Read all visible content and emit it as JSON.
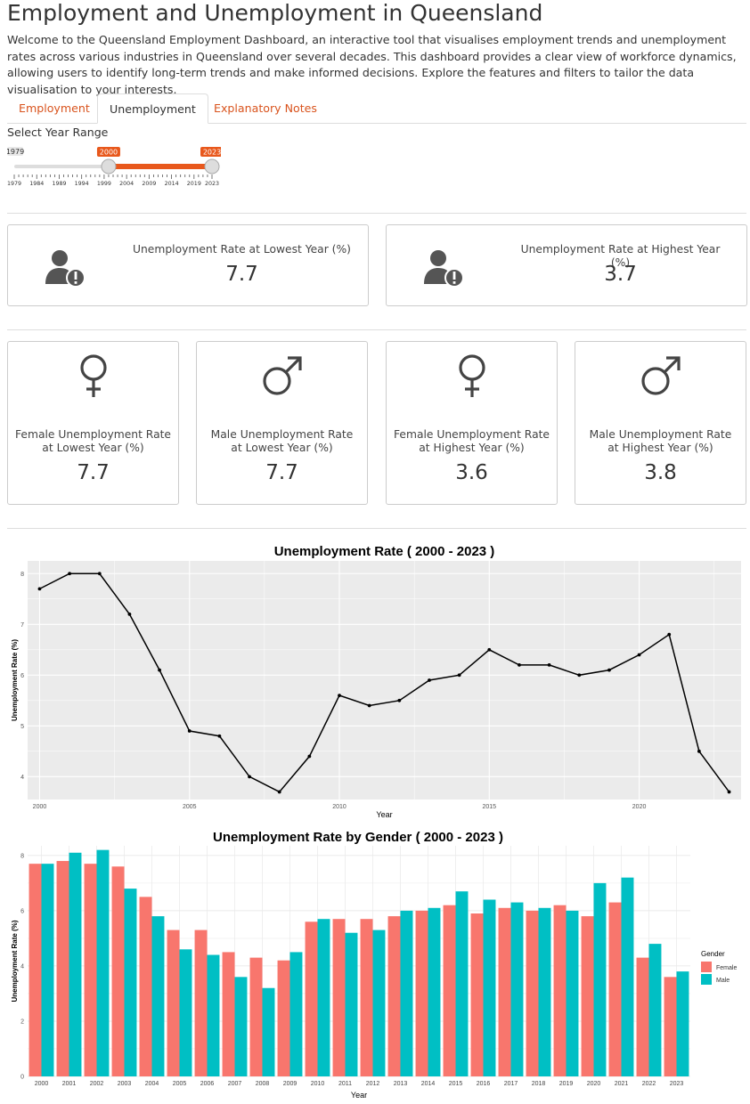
{
  "page": {
    "title": "Employment and Unemployment in Queensland",
    "intro": "Welcome to the Queensland Employment Dashboard, an interactive tool that visualises employment trends and unemployment rates across various industries in Queensland over several decades. This dashboard provides a clear view of workforce dynamics, allowing users to identify long-term trends and make informed decisions. Explore the features and filters to tailor the data visualisation to your interests."
  },
  "tabs": [
    {
      "label": "Employment",
      "active": false
    },
    {
      "label": "Unemployment",
      "active": true
    },
    {
      "label": "Explanatory Notes",
      "active": false
    }
  ],
  "year_slider": {
    "label": "Select Year Range",
    "min": 1979,
    "max": 2023,
    "from": 2000,
    "to": 2023,
    "min_label": "1979",
    "from_label": "2000",
    "to_label": "2023",
    "ticks": [
      "1979",
      "1984",
      "1989",
      "1994",
      "1999",
      "2004",
      "2009",
      "2014",
      "2019",
      "2023"
    ],
    "accent_color": "#e8581c"
  },
  "summary_boxes": [
    {
      "icon": "user-alert-icon",
      "label": "Unemployment Rate at Lowest Year (%)",
      "value": "7.7"
    },
    {
      "icon": "user-alert-icon",
      "label": "Unemployment Rate at Highest Year (%)",
      "value": "3.7"
    }
  ],
  "gender_boxes": [
    {
      "icon": "female-icon",
      "label_line1": "Female Unemployment Rate",
      "label_line2": "at Lowest Year (%)",
      "value": "7.7"
    },
    {
      "icon": "male-icon",
      "label_line1": "Male Unemployment Rate",
      "label_line2": "at Lowest Year (%)",
      "value": "7.7"
    },
    {
      "icon": "female-icon",
      "label_line1": "Female Unemployment Rate",
      "label_line2": "at Highest Year (%)",
      "value": "3.6"
    },
    {
      "icon": "male-icon",
      "label_line1": "Male Unemployment Rate",
      "label_line2": "at Highest Year (%)",
      "value": "3.8"
    }
  ],
  "chart_data": [
    {
      "type": "line",
      "title": "Unemployment Rate ( 2000 - 2023 )",
      "xlabel": "Year",
      "ylabel": "Unemployment Rate (%)",
      "x": [
        2000,
        2001,
        2002,
        2003,
        2004,
        2005,
        2006,
        2007,
        2008,
        2009,
        2010,
        2011,
        2012,
        2013,
        2014,
        2015,
        2016,
        2017,
        2018,
        2019,
        2020,
        2021,
        2022,
        2023
      ],
      "y": [
        7.7,
        8.0,
        8.0,
        7.2,
        6.1,
        4.9,
        4.8,
        4.0,
        3.7,
        4.4,
        5.6,
        5.4,
        5.5,
        5.9,
        6.0,
        6.5,
        6.2,
        6.2,
        6.0,
        6.1,
        6.4,
        6.8,
        4.5,
        3.7
      ],
      "xlim": [
        1999.6,
        2023.4
      ],
      "ylim": [
        3.55,
        8.25
      ],
      "xticks": [
        2000,
        2005,
        2010,
        2015,
        2020
      ],
      "yticks": [
        4,
        5,
        6,
        7,
        8
      ],
      "grid": true,
      "background": "#ebebeb",
      "line_color": "#000000"
    },
    {
      "type": "bar",
      "title": "Unemployment Rate by Gender ( 2000 - 2023 )",
      "xlabel": "Year",
      "ylabel": "Unemployment Rate (%)",
      "categories": [
        "2000",
        "2001",
        "2002",
        "2003",
        "2004",
        "2005",
        "2006",
        "2007",
        "2008",
        "2009",
        "2010",
        "2011",
        "2012",
        "2013",
        "2014",
        "2015",
        "2016",
        "2017",
        "2018",
        "2019",
        "2020",
        "2021",
        "2022",
        "2023"
      ],
      "series": [
        {
          "name": "Female",
          "color": "#f8766d",
          "values": [
            7.7,
            7.8,
            7.7,
            7.6,
            6.5,
            5.3,
            5.3,
            4.5,
            4.3,
            4.2,
            5.6,
            5.7,
            5.7,
            5.8,
            6.0,
            6.2,
            5.9,
            6.1,
            6.0,
            6.2,
            5.8,
            6.3,
            4.3,
            3.6
          ]
        },
        {
          "name": "Male",
          "color": "#00bfc4",
          "values": [
            7.7,
            8.1,
            8.2,
            6.8,
            5.8,
            4.6,
            4.4,
            3.6,
            3.2,
            4.5,
            5.7,
            5.2,
            5.3,
            6.0,
            6.1,
            6.7,
            6.4,
            6.3,
            6.1,
            6.0,
            7.0,
            7.2,
            4.8,
            3.8
          ]
        }
      ],
      "ylim": [
        0,
        8.35
      ],
      "yticks": [
        0,
        2,
        4,
        6,
        8
      ],
      "legend_title": "Gender",
      "legend_position": "right",
      "grid": true
    }
  ]
}
